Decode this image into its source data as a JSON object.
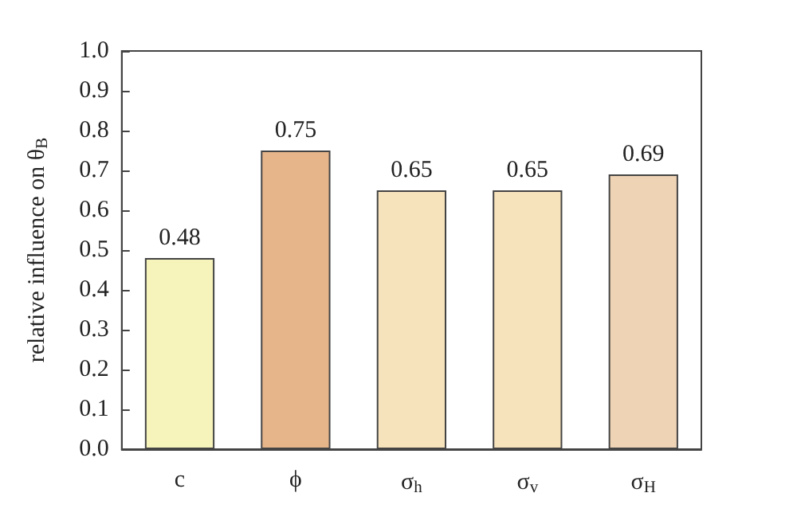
{
  "chart_data": {
    "type": "bar",
    "ylabel": "relative influence on θ$_{B}$",
    "categories": [
      "c",
      "ϕ",
      "σ$_{h}$",
      "σ$_{v}$",
      "σ$_{H}$"
    ],
    "values": [
      0.48,
      0.75,
      0.65,
      0.65,
      0.69
    ],
    "colors": [
      "#f6f3bb",
      "#e6b58a",
      "#f7e3bb",
      "#f7e3bb",
      "#eed3b5"
    ],
    "ylim": [
      0,
      1
    ],
    "yticks": [
      {
        "value": 0,
        "label": "0.0"
      },
      0.1,
      0.2,
      0.3,
      0.4,
      0.5,
      0.6,
      0.7,
      0.8,
      0.9,
      {
        "value": 1,
        "label": "1.0"
      }
    ],
    "data_labels": true,
    "grid": false
  }
}
